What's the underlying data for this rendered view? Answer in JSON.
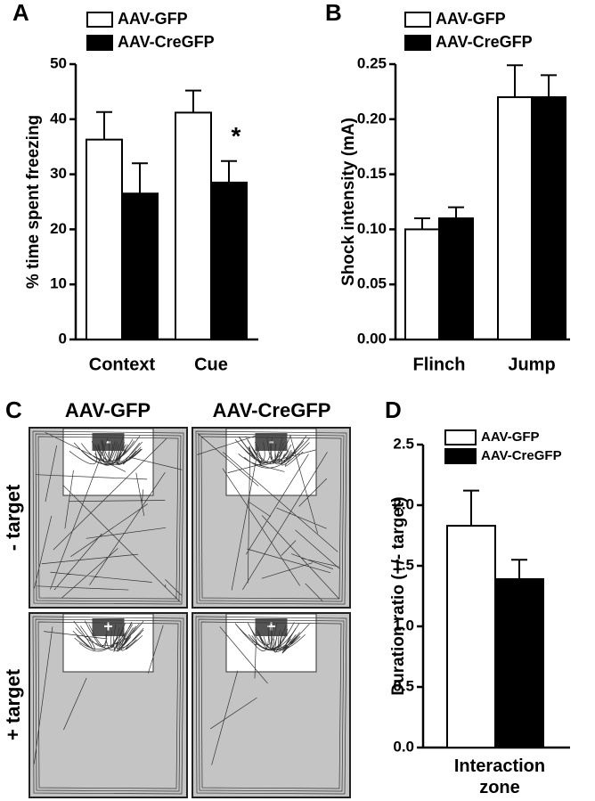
{
  "panel_labels": [
    "A",
    "B",
    "C",
    "D"
  ],
  "chart_data": [
    {
      "type": "bar",
      "y_label": "% time spent freezing",
      "categories": [
        "Context",
        "Cue"
      ],
      "series": [
        {
          "name": "AAV-GFP",
          "color": "#ffffff",
          "values": [
            36.3,
            41.2
          ],
          "errors": [
            5.0,
            4.0
          ]
        },
        {
          "name": "AAV-CreGFP",
          "color": "#000000",
          "values": [
            26.5,
            28.5
          ],
          "errors": [
            5.5,
            3.9
          ]
        }
      ],
      "annotation": "*",
      "ylim": [
        0,
        50
      ],
      "yticks": [
        0,
        10,
        20,
        30,
        40,
        50
      ]
    },
    {
      "type": "bar",
      "y_label": "Shock intensity (mA)",
      "categories": [
        "Flinch",
        "Jump"
      ],
      "series": [
        {
          "name": "AAV-GFP",
          "color": "#ffffff",
          "values": [
            0.1,
            0.22
          ],
          "errors": [
            0.01,
            0.029
          ]
        },
        {
          "name": "AAV-CreGFP",
          "color": "#000000",
          "values": [
            0.11,
            0.22
          ],
          "errors": [
            0.01,
            0.02
          ]
        }
      ],
      "ylim": [
        0,
        0.25
      ],
      "yticks": [
        {
          "value": 0,
          "label": "0.00"
        },
        0.05,
        {
          "value": 0.1,
          "label": "0.10"
        },
        0.15,
        {
          "value": 0.2,
          "label": "0.20"
        },
        0.25
      ]
    },
    {
      "type": "bar",
      "y_label": "Duration ratio (+/- target)",
      "categories": [
        "Interaction zone"
      ],
      "series": [
        {
          "name": "AAV-GFP",
          "color": "#ffffff",
          "values": [
            1.83
          ],
          "errors": [
            0.29
          ]
        },
        {
          "name": "AAV-CreGFP",
          "color": "#000000",
          "values": [
            1.39
          ],
          "errors": [
            0.16
          ]
        }
      ],
      "ylim": [
        0,
        2.5
      ],
      "yticks": [
        {
          "value": 0,
          "label": "0.0"
        },
        0.5,
        {
          "value": 1,
          "label": "1.0"
        },
        1.5,
        {
          "value": 2,
          "label": "2.0"
        },
        2.5
      ]
    }
  ],
  "panel_c": {
    "columns": [
      "AAV-GFP",
      "AAV-CreGFP"
    ],
    "rows": [
      "- target",
      "+ target"
    ],
    "zone_marks": [
      "-",
      "+"
    ]
  }
}
